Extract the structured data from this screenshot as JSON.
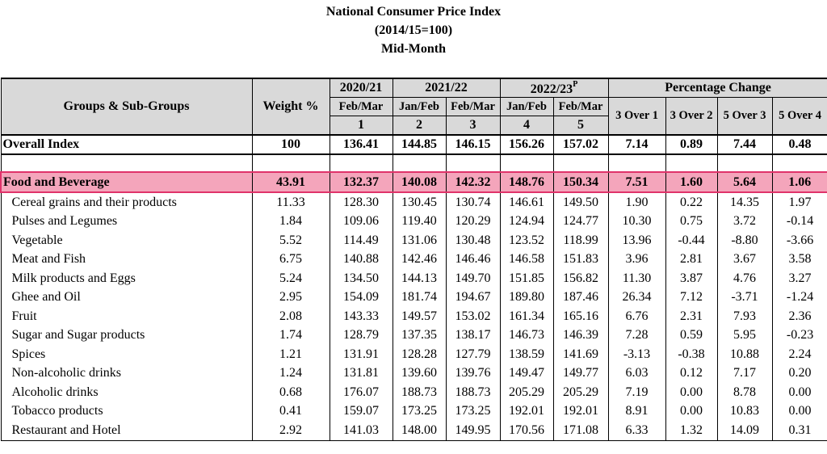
{
  "title": {
    "line1": "National Consumer Price Index",
    "line2": "(2014/15=100)",
    "line3": "Mid-Month"
  },
  "header": {
    "groups_col": "Groups & Sub-Groups",
    "weight_col": "Weight %",
    "year1": "2020/21",
    "year2": "2021/22",
    "year3": "2022/23",
    "year3_sup": "P",
    "pct_change": "Percentage Change",
    "months": [
      "Feb/Mar",
      "Jan/Feb",
      "Feb/Mar",
      "Jan/Feb",
      "Feb/Mar"
    ],
    "col_nums": [
      "1",
      "2",
      "3",
      "4",
      "5"
    ],
    "pct_cols": [
      "3 Over 1",
      "3 Over 2",
      "5 Over 3",
      "5 Over 4"
    ]
  },
  "overall": [
    "Overall Index",
    "100",
    "136.41",
    "144.85",
    "146.15",
    "156.26",
    "157.02",
    "7.14",
    "0.89",
    "7.44",
    "0.48"
  ],
  "food": [
    "Food and Beverage",
    "43.91",
    "132.37",
    "140.08",
    "142.32",
    "148.76",
    "150.34",
    "7.51",
    "1.60",
    "5.64",
    "1.06"
  ],
  "rows": [
    [
      "Cereal grains and their products",
      "11.33",
      "128.30",
      "130.45",
      "130.74",
      "146.61",
      "149.50",
      "1.90",
      "0.22",
      "14.35",
      "1.97"
    ],
    [
      "Pulses and Legumes",
      "1.84",
      "109.06",
      "119.40",
      "120.29",
      "124.94",
      "124.77",
      "10.30",
      "0.75",
      "3.72",
      "-0.14"
    ],
    [
      "Vegetable",
      "5.52",
      "114.49",
      "131.06",
      "130.48",
      "123.52",
      "118.99",
      "13.96",
      "-0.44",
      "-8.80",
      "-3.66"
    ],
    [
      "Meat and Fish",
      "6.75",
      "140.88",
      "142.46",
      "146.46",
      "146.58",
      "151.83",
      "3.96",
      "2.81",
      "3.67",
      "3.58"
    ],
    [
      "Milk products and Eggs",
      "5.24",
      "134.50",
      "144.13",
      "149.70",
      "151.85",
      "156.82",
      "11.30",
      "3.87",
      "4.76",
      "3.27"
    ],
    [
      "Ghee and Oil",
      "2.95",
      "154.09",
      "181.74",
      "194.67",
      "189.80",
      "187.46",
      "26.34",
      "7.12",
      "-3.71",
      "-1.24"
    ],
    [
      "Fruit",
      "2.08",
      "143.33",
      "149.57",
      "153.02",
      "161.34",
      "165.16",
      "6.76",
      "2.31",
      "7.93",
      "2.36"
    ],
    [
      "Sugar and Sugar products",
      "1.74",
      "128.79",
      "137.35",
      "138.17",
      "146.73",
      "146.39",
      "7.28",
      "0.59",
      "5.95",
      "-0.23"
    ],
    [
      "Spices",
      "1.21",
      "131.91",
      "128.28",
      "127.79",
      "138.59",
      "141.69",
      "-3.13",
      "-0.38",
      "10.88",
      "2.24"
    ],
    [
      "Non-alcoholic drinks",
      "1.24",
      "131.81",
      "139.60",
      "139.76",
      "149.47",
      "149.77",
      "6.03",
      "0.12",
      "7.17",
      "0.20"
    ],
    [
      "Alcoholic drinks",
      "0.68",
      "176.07",
      "188.73",
      "188.73",
      "205.29",
      "205.29",
      "7.19",
      "0.00",
      "8.78",
      "0.00"
    ],
    [
      "Tobacco products",
      "0.41",
      "159.07",
      "173.25",
      "173.25",
      "192.01",
      "192.01",
      "8.91",
      "0.00",
      "10.83",
      "0.00"
    ],
    [
      "Restaurant and Hotel",
      "2.92",
      "141.03",
      "148.00",
      "149.95",
      "170.56",
      "171.08",
      "6.33",
      "1.32",
      "14.09",
      "0.31"
    ]
  ],
  "colors": {
    "highlight_fill": "#f4a5bb",
    "highlight_border": "#e0336a",
    "header_fill": "#d9d9d9"
  }
}
